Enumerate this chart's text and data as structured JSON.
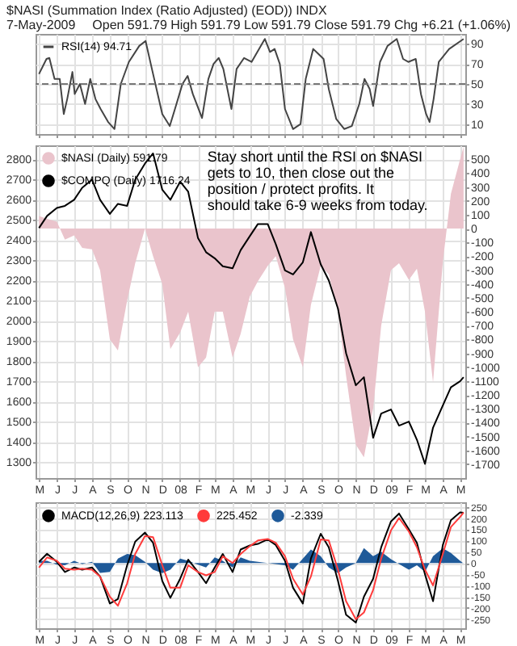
{
  "chart_data": [
    {
      "type": "line",
      "title": "$NASI (Summation Index (Ratio Adjusted) (EOD)) INDX",
      "subtitle": "Open 591.79 High 591.79 Low 591.79 Close 591.79 Chg +6.21 (+1.06%)",
      "annotations": [
        "7-May-2009"
      ],
      "xlim": [
        "2007-04-25",
        "2009-05-10"
      ],
      "xticks": [
        "2007-05-01",
        "2007-06-01",
        "2007-07-01",
        "2007-08-01",
        "2007-09-01",
        "2007-10-01",
        "2007-11-01",
        "2007-12-01",
        "2008-01-01",
        "2008-02-01",
        "2008-03-01",
        "2008-04-01",
        "2008-05-01",
        "2008-06-01",
        "2008-07-01",
        "2008-08-01",
        "2008-09-01",
        "2008-10-01",
        "2008-11-01",
        "2008-12-01",
        "2009-01-01",
        "2009-02-01",
        "2009-03-01",
        "2009-04-01",
        "2009-05-01"
      ],
      "ylim": [
        0,
        100
      ],
      "yticks": [
        10,
        30,
        50,
        70,
        90
      ],
      "grid": true,
      "legend": "top left",
      "tick_labels": "y",
      "ref_lines": [
        {
          "axis": "y",
          "value": 50,
          "line_style": "dashed"
        }
      ],
      "series": [
        {
          "name": "RSI(14) 94.71",
          "color": "#444444",
          "x": [
            "2007-05-01",
            "2007-05-14",
            "2007-05-19",
            "2007-05-28",
            "2007-06-06",
            "2007-06-13",
            "2007-06-19",
            "2007-06-28",
            "2007-07-02",
            "2007-07-11",
            "2007-07-20",
            "2007-07-29",
            "2007-08-07",
            "2007-08-16",
            "2007-08-29",
            "2007-09-09",
            "2007-09-20",
            "2007-10-04",
            "2007-10-22",
            "2007-11-02",
            "2007-11-13",
            "2007-12-01",
            "2007-12-14",
            "2007-12-23",
            "2008-01-05",
            "2008-01-14",
            "2008-01-23",
            "2008-02-08",
            "2008-02-19",
            "2008-02-28",
            "2008-03-08",
            "2008-03-16",
            "2008-03-30",
            "2008-04-08",
            "2008-04-21",
            "2008-05-04",
            "2008-05-27",
            "2008-06-05",
            "2008-06-13",
            "2008-06-22",
            "2008-07-01",
            "2008-07-15",
            "2008-07-28",
            "2008-08-06",
            "2008-08-19",
            "2008-08-28",
            "2008-09-06",
            "2008-09-15",
            "2008-09-28",
            "2008-10-12",
            "2008-10-25",
            "2008-11-07",
            "2008-11-16",
            "2008-11-25",
            "2008-12-01",
            "2008-12-13",
            "2008-12-26",
            "2009-01-11",
            "2009-01-22",
            "2009-01-31",
            "2009-02-13",
            "2009-02-22",
            "2009-03-03",
            "2009-03-09",
            "2009-03-16",
            "2009-03-25",
            "2009-04-12",
            "2009-05-07"
          ],
          "values": [
            60,
            75,
            76,
            55,
            55,
            20,
            35,
            62,
            40,
            50,
            30,
            55,
            35,
            25,
            12,
            5,
            50,
            72,
            88,
            93,
            65,
            20,
            8,
            25,
            50,
            58,
            40,
            16,
            55,
            70,
            76,
            65,
            25,
            65,
            76,
            72,
            95,
            82,
            85,
            70,
            25,
            5,
            10,
            55,
            85,
            80,
            75,
            45,
            15,
            5,
            8,
            30,
            55,
            45,
            28,
            72,
            88,
            95,
            75,
            72,
            75,
            40,
            20,
            12,
            35,
            72,
            85,
            95
          ]
        }
      ]
    },
    {
      "type": "line",
      "annotations": [
        "Stay short until the RSI on $NASI gets to 10, then close out the position / protect profits. It should take 6-9 weeks from today."
      ],
      "x": [
        "2007-05-01",
        "2007-05-15",
        "2007-06-01",
        "2007-06-15",
        "2007-07-01",
        "2007-07-15",
        "2007-08-01",
        "2007-08-15",
        "2007-09-01",
        "2007-09-15",
        "2007-10-01",
        "2007-10-15",
        "2007-11-01",
        "2007-11-15",
        "2007-12-01",
        "2007-12-15",
        "2008-01-01",
        "2008-01-15",
        "2008-02-01",
        "2008-02-15",
        "2008-03-01",
        "2008-03-15",
        "2008-04-01",
        "2008-04-15",
        "2008-05-01",
        "2008-05-15",
        "2008-06-01",
        "2008-06-15",
        "2008-07-01",
        "2008-07-15",
        "2008-08-01",
        "2008-08-15",
        "2008-09-01",
        "2008-09-15",
        "2008-10-01",
        "2008-10-15",
        "2008-11-01",
        "2008-11-15",
        "2008-12-01",
        "2008-12-15",
        "2009-01-01",
        "2009-01-15",
        "2009-02-01",
        "2009-02-15",
        "2009-03-01",
        "2009-03-15",
        "2009-04-01",
        "2009-04-15",
        "2009-05-01",
        "2009-05-07"
      ],
      "xlim": [
        "2007-04-25",
        "2009-05-10"
      ],
      "xticks": [
        {
          "value": "2007-05-01",
          "label": "M"
        },
        {
          "value": "2007-06-01",
          "label": "J"
        },
        {
          "value": "2007-07-01",
          "label": "J"
        },
        {
          "value": "2007-08-01",
          "label": "A"
        },
        {
          "value": "2007-09-01",
          "label": "S"
        },
        {
          "value": "2007-10-01",
          "label": "O"
        },
        {
          "value": "2007-11-01",
          "label": "N"
        },
        {
          "value": "2007-12-01",
          "label": "D"
        },
        {
          "value": "2008-01-01",
          "label": "08"
        },
        {
          "value": "2008-02-01",
          "label": "F"
        },
        {
          "value": "2008-03-01",
          "label": "M"
        },
        {
          "value": "2008-04-01",
          "label": "A"
        },
        {
          "value": "2008-05-01",
          "label": "M"
        },
        {
          "value": "2008-06-01",
          "label": "J"
        },
        {
          "value": "2008-07-01",
          "label": "J"
        },
        {
          "value": "2008-08-01",
          "label": "A"
        },
        {
          "value": "2008-09-01",
          "label": "S"
        },
        {
          "value": "2008-10-01",
          "label": "O"
        },
        {
          "value": "2008-11-01",
          "label": "N"
        },
        {
          "value": "2008-12-01",
          "label": "D"
        },
        {
          "value": "2009-01-01",
          "label": "09"
        },
        {
          "value": "2009-02-01",
          "label": "F"
        },
        {
          "value": "2009-03-01",
          "label": "M"
        },
        {
          "value": "2009-04-01",
          "label": "A"
        },
        {
          "value": "2009-05-01",
          "label": "M"
        }
      ],
      "ylim": [
        1220,
        2870
      ],
      "yticks": [
        1300,
        1400,
        1500,
        1600,
        1700,
        1800,
        1900,
        2000,
        2100,
        2200,
        2300,
        2400,
        2500,
        2600,
        2700,
        2800
      ],
      "y2lim": [
        -1800,
        600
      ],
      "y2ticks": [
        -1700,
        -1600,
        -1500,
        -1400,
        -1300,
        -1200,
        -1100,
        -1000,
        -900,
        -800,
        -700,
        -600,
        -500,
        -400,
        -300,
        -200,
        -100,
        0,
        100,
        200,
        300,
        400,
        500
      ],
      "grid": true,
      "legend": "top left",
      "series": [
        {
          "name": "$NASI (Daily) 591.79",
          "type": "area",
          "axis": "y2",
          "color": "#eac4cc",
          "values": [
            90,
            70,
            50,
            -80,
            -50,
            -140,
            -150,
            -300,
            -800,
            -880,
            -520,
            -250,
            0,
            -200,
            -400,
            -870,
            -750,
            -600,
            -1000,
            -930,
            -600,
            -600,
            -930,
            -760,
            -490,
            -380,
            -270,
            -200,
            -430,
            -800,
            -1000,
            -550,
            -270,
            -330,
            -600,
            -1060,
            -1560,
            -1650,
            -1300,
            -700,
            -300,
            -250,
            -370,
            -290,
            -600,
            -1110,
            -240,
            250,
            500,
            590
          ]
        },
        {
          "name": "$COMPQ (Daily) 1716.24",
          "color": "#000000",
          "values": [
            2460,
            2520,
            2560,
            2570,
            2600,
            2660,
            2700,
            2600,
            2530,
            2580,
            2570,
            2700,
            2780,
            2830,
            2650,
            2600,
            2690,
            2640,
            2410,
            2340,
            2310,
            2270,
            2260,
            2350,
            2420,
            2480,
            2480,
            2380,
            2250,
            2230,
            2290,
            2440,
            2280,
            2200,
            2060,
            1840,
            1680,
            1720,
            1420,
            1540,
            1560,
            1480,
            1500,
            1410,
            1290,
            1470,
            1580,
            1670,
            1700,
            1720
          ]
        }
      ]
    },
    {
      "type": "line",
      "x": [
        "2007-05-01",
        "2007-05-15",
        "2007-06-01",
        "2007-06-15",
        "2007-07-01",
        "2007-07-15",
        "2007-08-01",
        "2007-08-15",
        "2007-09-01",
        "2007-09-15",
        "2007-10-01",
        "2007-10-15",
        "2007-11-01",
        "2007-11-15",
        "2007-12-01",
        "2007-12-15",
        "2008-01-01",
        "2008-01-15",
        "2008-02-01",
        "2008-02-15",
        "2008-03-01",
        "2008-03-15",
        "2008-04-01",
        "2008-04-15",
        "2008-05-01",
        "2008-05-15",
        "2008-06-01",
        "2008-06-15",
        "2008-07-01",
        "2008-07-15",
        "2008-08-01",
        "2008-08-15",
        "2008-09-01",
        "2008-09-15",
        "2008-10-01",
        "2008-10-15",
        "2008-11-01",
        "2008-11-15",
        "2008-12-01",
        "2008-12-15",
        "2009-01-01",
        "2009-01-15",
        "2009-02-01",
        "2009-02-15",
        "2009-03-01",
        "2009-03-15",
        "2009-04-01",
        "2009-04-15",
        "2009-05-01",
        "2009-05-07"
      ],
      "xlim": [
        "2007-04-25",
        "2009-05-10"
      ],
      "xticks": [
        {
          "value": "2007-05-01",
          "label": "M"
        },
        {
          "value": "2007-06-01",
          "label": "J"
        },
        {
          "value": "2007-07-01",
          "label": "J"
        },
        {
          "value": "2007-08-01",
          "label": "A"
        },
        {
          "value": "2007-09-01",
          "label": "S"
        },
        {
          "value": "2007-10-01",
          "label": "O"
        },
        {
          "value": "2007-11-01",
          "label": "N"
        },
        {
          "value": "2007-12-01",
          "label": "D"
        },
        {
          "value": "2008-01-01",
          "label": "08"
        },
        {
          "value": "2008-02-01",
          "label": "F"
        },
        {
          "value": "2008-03-01",
          "label": "M"
        },
        {
          "value": "2008-04-01",
          "label": "A"
        },
        {
          "value": "2008-05-01",
          "label": "M"
        },
        {
          "value": "2008-06-01",
          "label": "J"
        },
        {
          "value": "2008-07-01",
          "label": "J"
        },
        {
          "value": "2008-08-01",
          "label": "A"
        },
        {
          "value": "2008-09-01",
          "label": "S"
        },
        {
          "value": "2008-10-01",
          "label": "O"
        },
        {
          "value": "2008-11-01",
          "label": "N"
        },
        {
          "value": "2008-12-01",
          "label": "D"
        },
        {
          "value": "2009-01-01",
          "label": "09"
        },
        {
          "value": "2009-02-01",
          "label": "F"
        },
        {
          "value": "2009-03-01",
          "label": "M"
        },
        {
          "value": "2009-04-01",
          "label": "A"
        },
        {
          "value": "2009-05-01",
          "label": "M"
        }
      ],
      "ylim": [
        -290,
        270
      ],
      "yticks": [
        -250,
        -200,
        -150,
        -100,
        -50,
        0,
        50,
        100,
        150,
        200,
        250
      ],
      "grid": true,
      "legend": "top left",
      "series": [
        {
          "name": "MACD(12,26,9) 223.113",
          "color": "#000000",
          "values": [
            5,
            41,
            5,
            -40,
            -20,
            -30,
            -20,
            -60,
            -180,
            -160,
            -10,
            95,
            135,
            90,
            -80,
            -155,
            -70,
            15,
            -40,
            -90,
            -20,
            40,
            -40,
            60,
            78,
            85,
            105,
            80,
            10,
            -110,
            -180,
            20,
            130,
            70,
            -80,
            -230,
            -265,
            -150,
            -70,
            70,
            185,
            220,
            150,
            90,
            -50,
            -170,
            80,
            190,
            225,
            223
          ]
        },
        {
          "name": "225.452",
          "color": "#ff3b3b",
          "values": [
            -20,
            25,
            10,
            -25,
            -30,
            -25,
            -30,
            -60,
            -150,
            -190,
            -90,
            40,
            120,
            115,
            -10,
            -110,
            -110,
            -10,
            -40,
            -55,
            -40,
            30,
            0,
            40,
            75,
            100,
            107,
            90,
            30,
            -70,
            -140,
            -60,
            105,
            100,
            -30,
            -170,
            -250,
            -220,
            -120,
            20,
            145,
            200,
            140,
            70,
            -30,
            -100,
            40,
            160,
            205,
            225
          ]
        },
        {
          "name": "-2.339",
          "type": "area",
          "color": "#1f5a99",
          "values": [
            10,
            10,
            -7,
            -10,
            10,
            -5,
            5,
            -44,
            -40,
            20,
            40,
            35,
            5,
            -30,
            -45,
            -30,
            20,
            10,
            -7,
            -20,
            25,
            10,
            -20,
            25,
            10,
            5,
            0,
            -5,
            -10,
            -30,
            20,
            60,
            30,
            -20,
            -45,
            -20,
            0,
            66,
            30,
            50,
            17,
            -5,
            -30,
            -10,
            -40,
            30,
            65,
            45,
            10,
            -2
          ]
        }
      ]
    }
  ]
}
